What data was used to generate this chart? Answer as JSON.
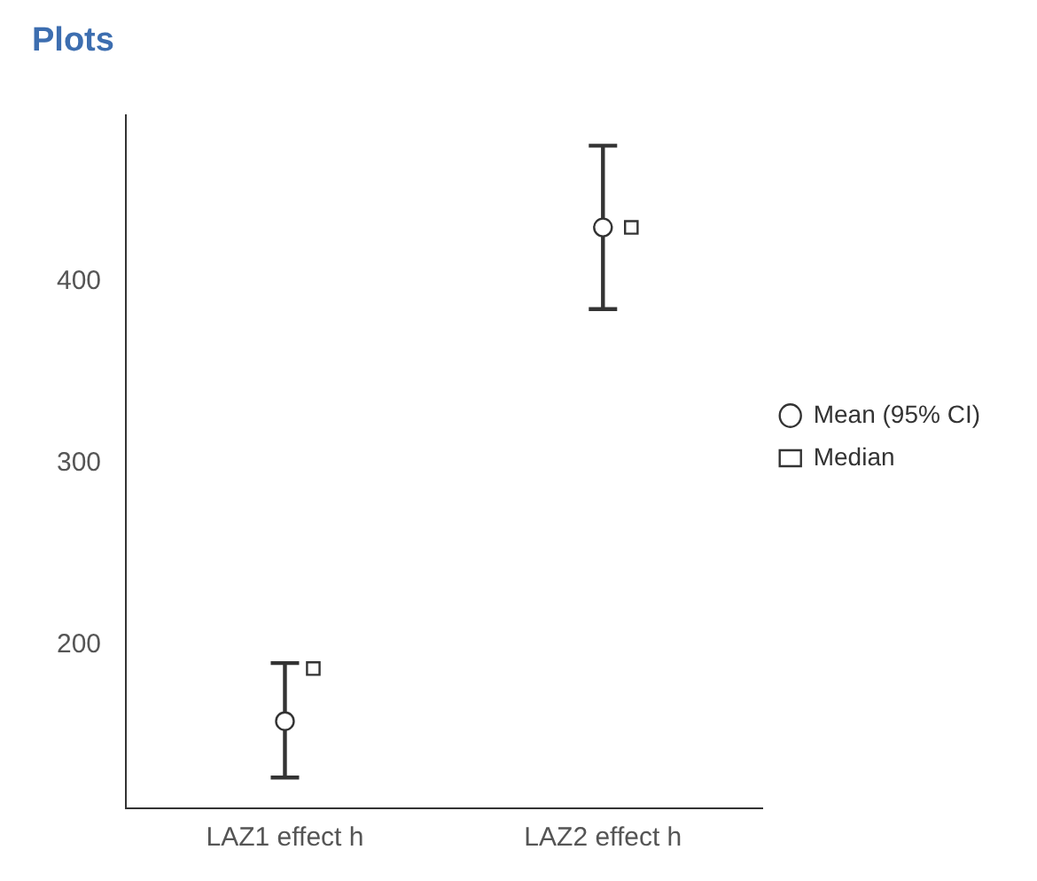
{
  "chart_data": {
    "type": "scatter",
    "title": "Plots",
    "categories": [
      "LAZ1 effect h",
      "LAZ2 effect h"
    ],
    "series": [
      {
        "name": "Mean (95% CI)",
        "type": "scatter",
        "marker": "circle",
        "color": "#333333",
        "values": [
          158,
          430
        ],
        "errors": [
          [
            127,
            190
          ],
          [
            385,
            475
          ]
        ]
      },
      {
        "name": "Median",
        "type": "scatter",
        "marker": "square",
        "color": "#333333",
        "values": [
          187,
          430
        ]
      }
    ],
    "ylim": [
      110,
      492
    ],
    "yticks": [
      200,
      300,
      400
    ],
    "legend": "right"
  }
}
